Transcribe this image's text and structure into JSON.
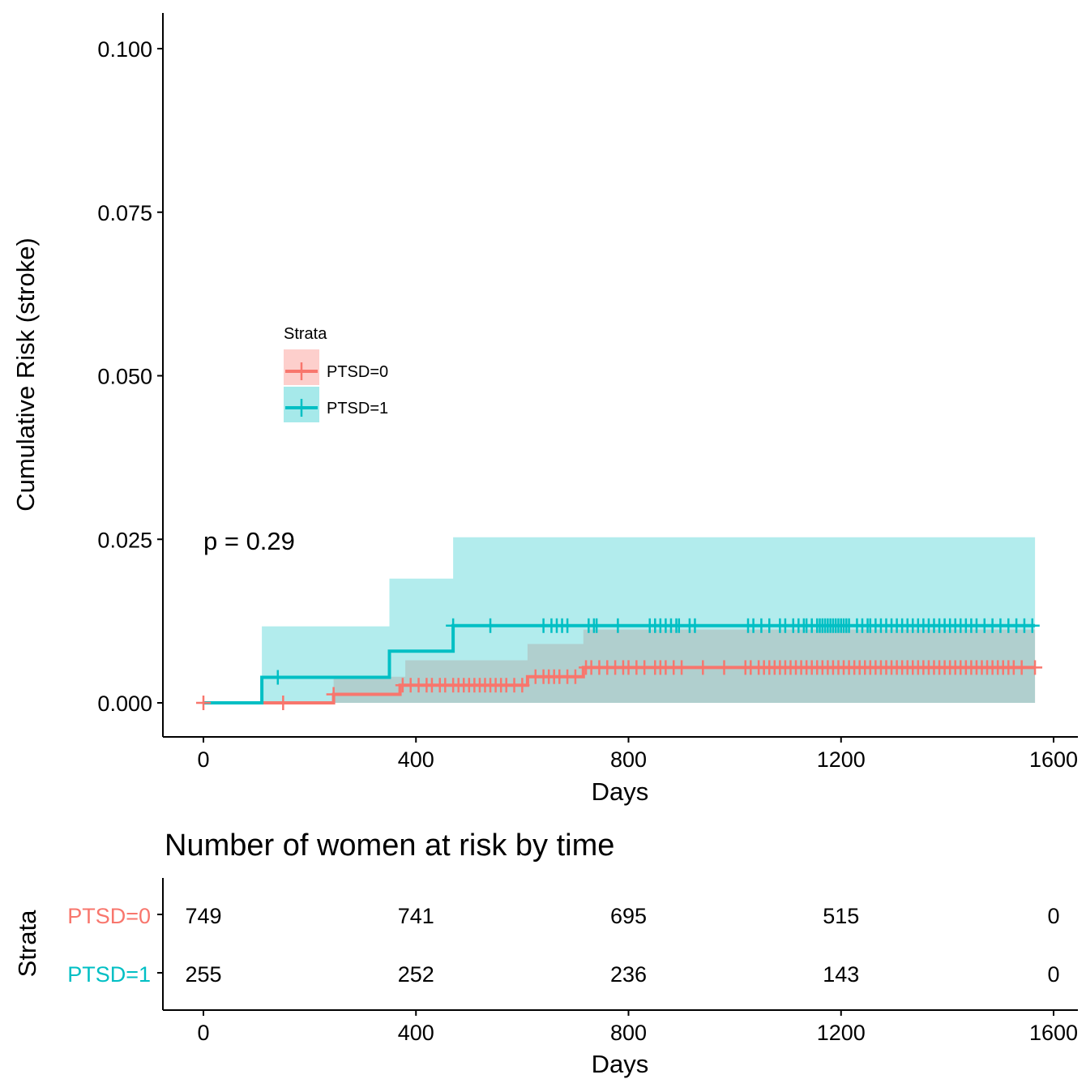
{
  "chart_data": [
    {
      "type": "line",
      "subtype": "kaplan-meier cumulative risk (step)",
      "xlabel": "Days",
      "ylabel": "Cumulative Risk (stroke)",
      "xlim": [
        -40,
        1630
      ],
      "ylim": [
        -0.005,
        0.105
      ],
      "x_ticks": [
        "0",
        "400",
        "800",
        "1200",
        "1600"
      ],
      "y_ticks": [
        "0.000",
        "0.025",
        "0.050",
        "0.075",
        "0.100"
      ],
      "annotation": "p = 0.29",
      "legend": {
        "title": "Strata",
        "placement": "center-left",
        "entries": [
          "PTSD=0",
          "PTSD=1"
        ]
      },
      "grid": false,
      "series": [
        {
          "name": "PTSD=0",
          "color": "#F8766D",
          "steps": [
            [
              0,
              0
            ],
            [
              245,
              0.0013
            ],
            [
              370,
              0.0027
            ],
            [
              610,
              0.004
            ],
            [
              715,
              0.0054
            ],
            [
              1565,
              0.0054
            ]
          ],
          "ci_upper": [
            [
              0,
              0
            ],
            [
              245,
              0.004
            ],
            [
              380,
              0.0065
            ],
            [
              610,
              0.009
            ],
            [
              715,
              0.0112
            ],
            [
              1565,
              0.0112
            ]
          ],
          "ci_lower": [
            [
              0,
              0
            ],
            [
              1565,
              0
            ]
          ],
          "censor_times": [
            0,
            150,
            245,
            375,
            390,
            405,
            420,
            430,
            445,
            455,
            470,
            480,
            490,
            500,
            510,
            520,
            530,
            540,
            550,
            560,
            570,
            585,
            600,
            625,
            640,
            650,
            660,
            670,
            685,
            700,
            720,
            730,
            745,
            760,
            775,
            790,
            800,
            815,
            830,
            850,
            860,
            870,
            885,
            900,
            940,
            980,
            1020,
            1030,
            1045,
            1055,
            1065,
            1075,
            1085,
            1095,
            1105,
            1115,
            1125,
            1135,
            1145,
            1155,
            1165,
            1175,
            1185,
            1195,
            1205,
            1215,
            1225,
            1235,
            1245,
            1255,
            1265,
            1275,
            1285,
            1295,
            1305,
            1315,
            1325,
            1335,
            1345,
            1355,
            1365,
            1375,
            1385,
            1395,
            1405,
            1415,
            1425,
            1435,
            1445,
            1455,
            1465,
            1475,
            1485,
            1495,
            1505,
            1515,
            1525,
            1540,
            1565
          ]
        },
        {
          "name": "PTSD=1",
          "color": "#00BFC4",
          "steps": [
            [
              0,
              0
            ],
            [
              110,
              0.0039
            ],
            [
              350,
              0.0079
            ],
            [
              470,
              0.0118
            ],
            [
              1565,
              0.0118
            ]
          ],
          "ci_upper": [
            [
              0,
              0
            ],
            [
              110,
              0.0117
            ],
            [
              350,
              0.019
            ],
            [
              470,
              0.0253
            ],
            [
              1565,
              0.0253
            ]
          ],
          "ci_lower": [
            [
              0,
              0
            ],
            [
              1565,
              0
            ]
          ],
          "censor_times": [
            140,
            470,
            540,
            640,
            655,
            665,
            675,
            685,
            725,
            735,
            740,
            780,
            840,
            850,
            860,
            870,
            880,
            890,
            895,
            915,
            925,
            1025,
            1035,
            1050,
            1065,
            1085,
            1095,
            1110,
            1120,
            1130,
            1135,
            1145,
            1155,
            1160,
            1165,
            1170,
            1175,
            1180,
            1185,
            1190,
            1195,
            1200,
            1205,
            1210,
            1215,
            1230,
            1240,
            1250,
            1255,
            1265,
            1275,
            1285,
            1295,
            1305,
            1315,
            1325,
            1335,
            1345,
            1355,
            1365,
            1375,
            1385,
            1395,
            1405,
            1415,
            1425,
            1435,
            1445,
            1455,
            1470,
            1485,
            1500,
            1515,
            1530,
            1545,
            1560
          ]
        }
      ]
    },
    {
      "type": "table",
      "title": "Number of women at risk by time",
      "xlabel": "Days",
      "ylabel": "Strata",
      "xlim": [
        -40,
        1630
      ],
      "x_ticks": [
        "0",
        "400",
        "800",
        "1200",
        "1600"
      ],
      "x": [
        0,
        400,
        800,
        1200,
        1600
      ],
      "rows": [
        {
          "name": "PTSD=0",
          "color": "#F8766D",
          "values": [
            "749",
            "741",
            "695",
            "515",
            "0"
          ]
        },
        {
          "name": "PTSD=1",
          "color": "#00BFC4",
          "values": [
            "255",
            "252",
            "236",
            "143",
            "0"
          ]
        }
      ]
    }
  ]
}
